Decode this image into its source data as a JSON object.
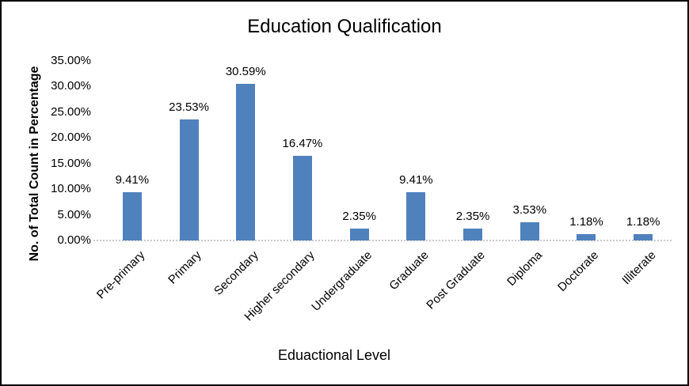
{
  "chart_data": {
    "type": "bar",
    "title": "Education Qualification",
    "xlabel": "Eduactional Level",
    "ylabel": "No. of Total Count in Percentage",
    "categories": [
      "Pre-primary",
      "Primary",
      "Secondary",
      "Higher secondary",
      "Undergraduate",
      "Graduate",
      "Post Graduate",
      "Diploma",
      "Doctorate",
      "Illiterate"
    ],
    "values": [
      9.41,
      23.53,
      30.59,
      16.47,
      2.35,
      9.41,
      2.35,
      3.53,
      1.18,
      1.18
    ],
    "data_labels": [
      "9.41%",
      "23.53%",
      "30.59%",
      "16.47%",
      "2.35%",
      "9.41%",
      "2.35%",
      "3.53%",
      "1.18%",
      "1.18%"
    ],
    "y_ticks": [
      "0.00%",
      "5.00%",
      "10.00%",
      "15.00%",
      "20.00%",
      "25.00%",
      "30.00%",
      "35.00%"
    ],
    "ylim": [
      0,
      35
    ],
    "grid": false,
    "legend_position": "none",
    "bar_color": "#4F81BD",
    "axis_line_color": "#C9C9C9",
    "text_color": "#000000"
  }
}
